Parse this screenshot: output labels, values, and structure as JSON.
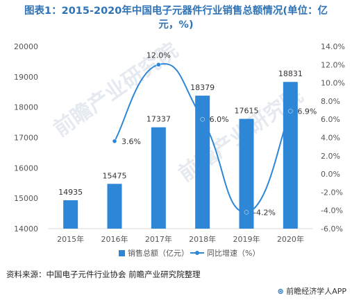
{
  "title": {
    "line1": "图表1：2015-2020年中国电子元器件行业销售总额情况(单位：亿",
    "line2": "元，%)"
  },
  "chart_data": {
    "type": "bar+line",
    "title": "图表1：2015-2020年中国电子元器件行业销售总额情况(单位：亿元，%)",
    "categories": [
      "2015年",
      "2016年",
      "2017年",
      "2018年",
      "2019年",
      "2020年"
    ],
    "series": [
      {
        "name": "销售总额（亿元）",
        "type": "bar",
        "axis": "left",
        "color": "#2e86d6",
        "values": [
          14935,
          15475,
          17337,
          18379,
          17615,
          18831
        ],
        "labels": [
          "14935",
          "15475",
          "17337",
          "18379",
          "17615",
          "18831"
        ]
      },
      {
        "name": "同比增速（%）",
        "type": "line",
        "axis": "right",
        "color": "#2e86d6",
        "values": [
          null,
          3.6,
          12.0,
          6.0,
          -4.2,
          6.9
        ],
        "labels": [
          "",
          "3.6%",
          "12.0%",
          "6.0%",
          "-4.2%",
          "6.9%"
        ]
      }
    ],
    "y_left": {
      "min": 14000,
      "max": 20000,
      "step": 1000,
      "ticks": [
        "14000",
        "15000",
        "16000",
        "17000",
        "18000",
        "19000",
        "20000"
      ]
    },
    "y_right": {
      "min": -6,
      "max": 14,
      "step": 2,
      "ticks": [
        "-6.0%",
        "-4.0%",
        "-2.0%",
        "0.0%",
        "2.0%",
        "4.0%",
        "6.0%",
        "8.0%",
        "10.0%",
        "12.0%",
        "14.0%"
      ]
    },
    "legend": {
      "position": "bottom"
    },
    "grid": false
  },
  "source": "资料来源：中国电子元件行业协会 前瞻产业研究院整理",
  "brand": {
    "mark": "⊛",
    "text": "前瞻经济学人APP"
  },
  "watermark": "前瞻产业研究院"
}
